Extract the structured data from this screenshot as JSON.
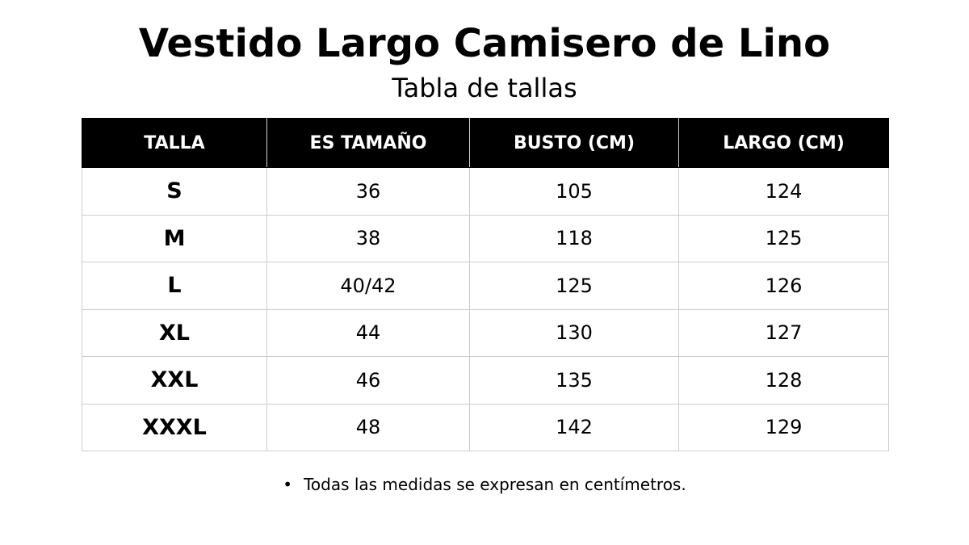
{
  "header": {
    "title": "Vestido Largo Camisero de Lino",
    "subtitle": "Tabla de tallas"
  },
  "table": {
    "columns": [
      "TALLA",
      "ES TAMAÑO",
      "BUSTO (CM)",
      "LARGO (CM)"
    ],
    "rows": [
      [
        "S",
        36,
        105,
        124
      ],
      [
        "M",
        38,
        118,
        125
      ],
      [
        "L",
        "40/42",
        125,
        126
      ],
      [
        "XL",
        44,
        130,
        127
      ],
      [
        "XXL",
        46,
        135,
        128
      ],
      [
        "XXXL",
        48,
        142,
        129
      ]
    ]
  },
  "footnote": "Todas las medidas se expresan en centímetros."
}
